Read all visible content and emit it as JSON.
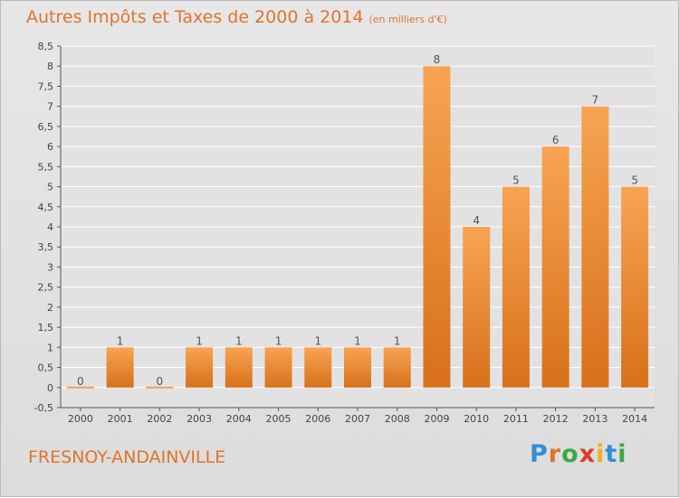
{
  "page": {
    "title": "Autres Impôts et Taxes de 2000 à 2014",
    "unit_note": "(en milliers d'€)",
    "commune": "FRESNOY-ANDAINVILLE",
    "brand": {
      "letters": [
        "P",
        "r",
        "o",
        "x",
        "i",
        "t",
        "i"
      ],
      "colors": [
        "#2f8fd8",
        "#e0742b",
        "#3aa845",
        "#e03a2b",
        "#f0b020",
        "#2f8fd8",
        "#3aa845"
      ]
    }
  },
  "chart_data": {
    "type": "bar",
    "categories": [
      "2000",
      "2001",
      "2002",
      "2003",
      "2004",
      "2005",
      "2006",
      "2007",
      "2008",
      "2009",
      "2010",
      "2011",
      "2012",
      "2013",
      "2014"
    ],
    "values": [
      0,
      1,
      0,
      1,
      1,
      1,
      1,
      1,
      1,
      8,
      4,
      5,
      6,
      7,
      5
    ],
    "data_labels": [
      "0",
      "1",
      "0",
      "1",
      "1",
      "1",
      "1",
      "1",
      "1",
      "8",
      "4",
      "5",
      "6",
      "7",
      "5"
    ],
    "title": "Autres Impôts et Taxes de 2000 à 2014",
    "subtitle": "(en milliers d'€)",
    "xlabel": "",
    "ylabel": "",
    "ylim": [
      -0.5,
      8.5
    ],
    "yticks": [
      "-0,5",
      "0",
      "0,5",
      "1",
      "1,5",
      "2",
      "2,5",
      "3",
      "3,5",
      "4",
      "4,5",
      "5",
      "5,5",
      "6",
      "6,5",
      "7",
      "7,5",
      "8",
      "8,5"
    ],
    "grid": true,
    "legend": "none",
    "colors": {
      "bar_light": "#f7a452",
      "bar_dark": "#d8701a",
      "zero_bar": "#f0a060",
      "title": "#e0742b",
      "grid": "#ffffff",
      "axis_text": "#444444",
      "label_text": "#555555"
    }
  }
}
